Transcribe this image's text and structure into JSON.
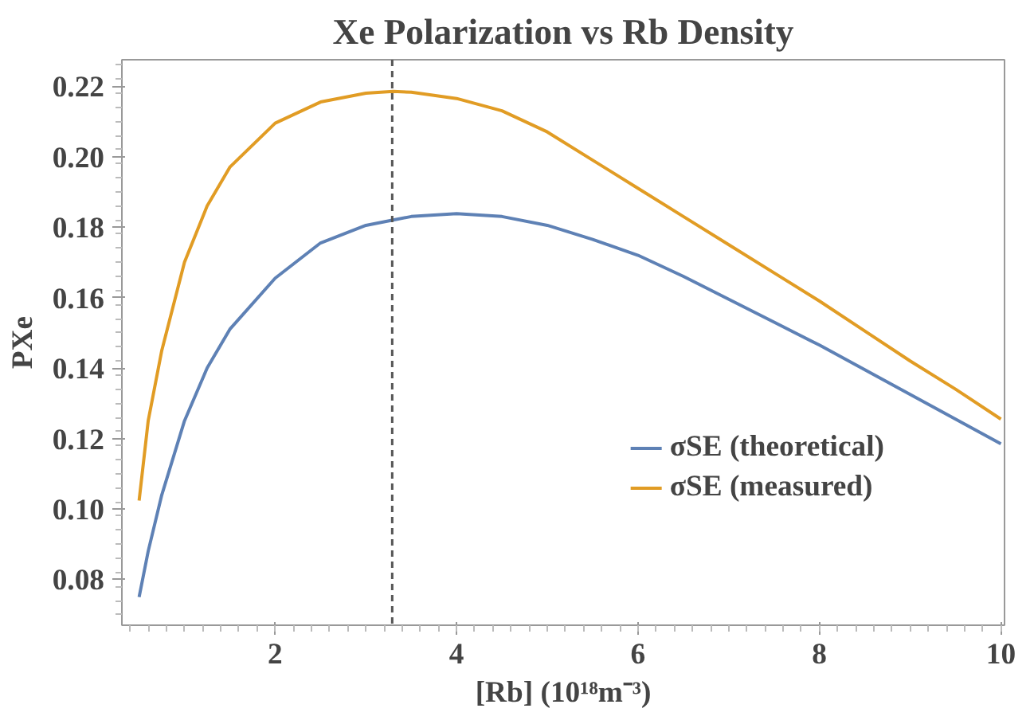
{
  "chart_data": {
    "type": "line",
    "title": "Xe Polarization vs Rb Density",
    "xlabel": "[Rb] (10¹⁸m⁻³)",
    "ylabel": "PXe",
    "xlim": [
      0.31,
      10.04
    ],
    "ylim": [
      0.067,
      0.2275
    ],
    "xticks": [
      2,
      4,
      6,
      8,
      10
    ],
    "yticks": [
      0.08,
      {
        "value": 0.1,
        "label": "0.10"
      },
      0.12,
      0.14,
      0.16,
      0.18,
      {
        "value": 0.2,
        "label": "0.20"
      },
      0.22
    ],
    "x": [
      0.5,
      0.6,
      0.75,
      1.0,
      1.25,
      1.5,
      2.0,
      2.5,
      3.0,
      3.3,
      3.5,
      4.0,
      4.5,
      5.0,
      5.5,
      6.0,
      6.5,
      7.0,
      7.5,
      8.0,
      8.5,
      9.0,
      9.5,
      10.0
    ],
    "series": [
      {
        "name": "σSE (theoretical)",
        "color": "#5e81b5",
        "values": [
          0.075,
          0.088,
          0.104,
          0.125,
          0.14,
          0.151,
          0.1655,
          0.1755,
          0.1805,
          0.182,
          0.183,
          0.1838,
          0.183,
          0.1805,
          0.1765,
          0.172,
          0.166,
          0.1595,
          0.153,
          0.1465,
          0.1395,
          0.1325,
          0.1255,
          0.1185
        ]
      },
      {
        "name": "σSE (measured)",
        "color": "#e19c24",
        "values": [
          0.1024,
          0.125,
          0.145,
          0.17,
          0.186,
          0.197,
          0.2095,
          0.2155,
          0.218,
          0.2185,
          0.2183,
          0.2165,
          0.213,
          0.207,
          0.199,
          0.191,
          0.183,
          0.175,
          0.167,
          0.159,
          0.1505,
          0.142,
          0.134,
          0.1255
        ]
      }
    ],
    "ref_lines": [
      {
        "axis": "x",
        "value": 3.29,
        "color": "#555555",
        "line_style": "dashed"
      }
    ],
    "grid": false,
    "legend": "bottom right",
    "marker": "none",
    "line_style": "solid"
  }
}
